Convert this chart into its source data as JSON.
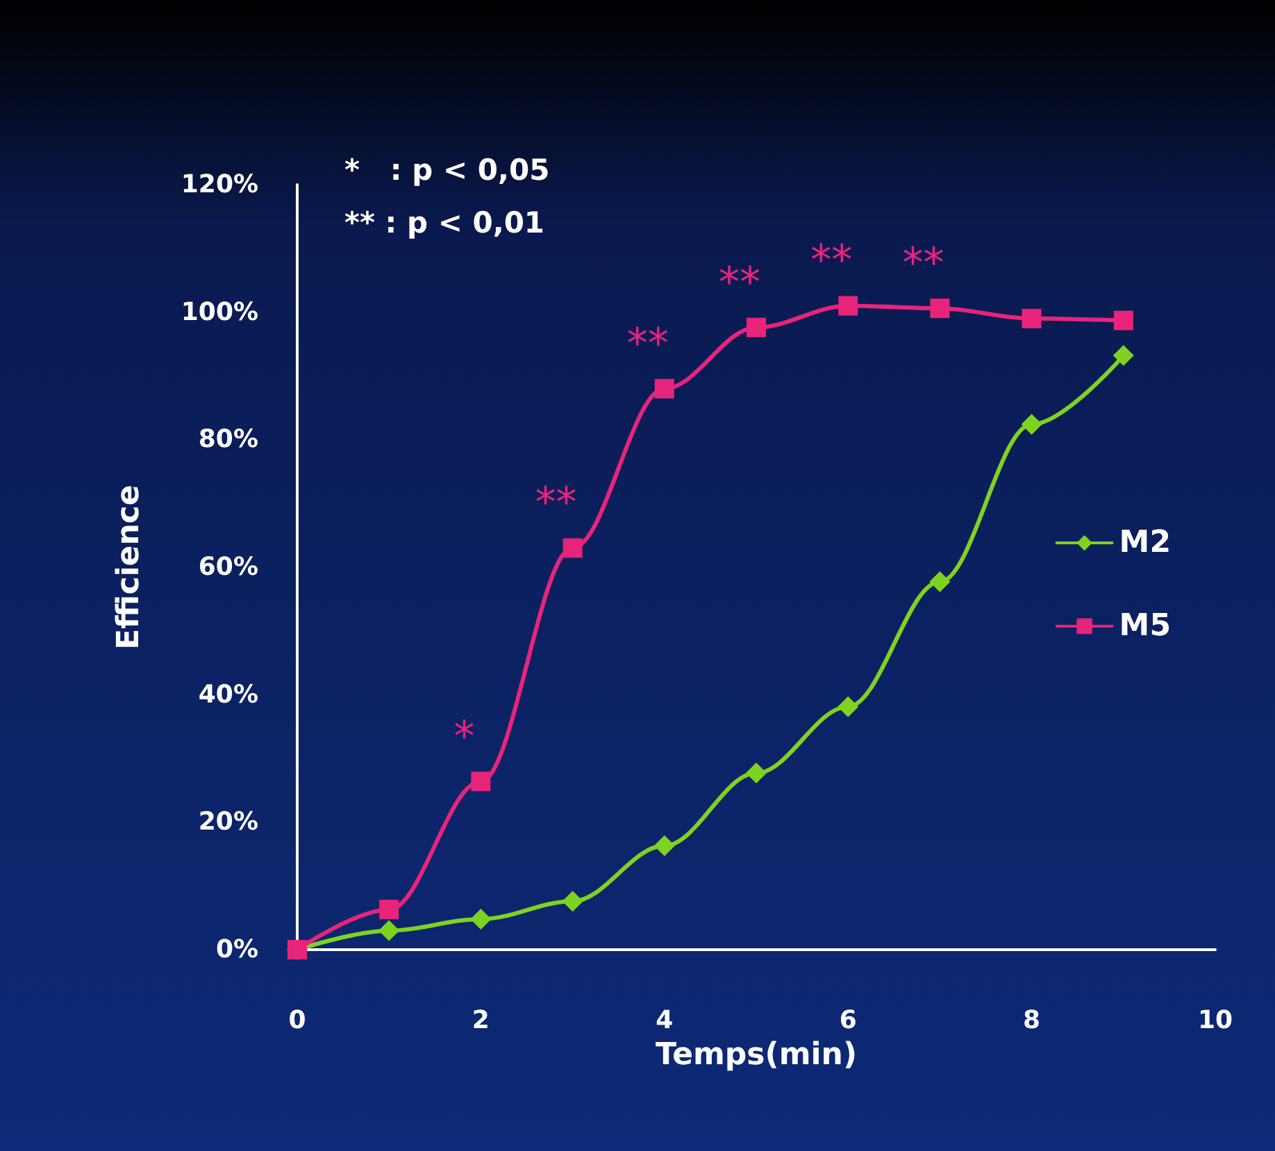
{
  "chart_data": {
    "type": "line",
    "xlabel": "Temps(min)",
    "ylabel": "Efficience",
    "x": [
      0,
      1,
      2,
      3,
      4,
      5,
      6,
      7,
      8,
      9
    ],
    "series": [
      {
        "name": "M2",
        "color": "#7ed321",
        "marker": "diamond",
        "values": [
          0,
          3,
          4.8,
          7.6,
          16.3,
          27.7,
          38.1,
          57.7,
          82.4,
          93.2
        ]
      },
      {
        "name": "M5",
        "color": "#e8247a",
        "marker": "square",
        "values": [
          0,
          6.3,
          26.4,
          63,
          88,
          97.6,
          101,
          100.6,
          99,
          98.7
        ]
      }
    ],
    "xlim": [
      0,
      10
    ],
    "xticks": [
      0,
      2,
      4,
      6,
      8,
      10
    ],
    "ylim": [
      0,
      120
    ],
    "yticks": [
      {
        "value": 0,
        "label": "0%"
      },
      {
        "value": 20,
        "label": "20%"
      },
      {
        "value": 40,
        "label": "40%"
      },
      {
        "value": 60,
        "label": "60%"
      },
      {
        "value": 80,
        "label": "80%"
      },
      {
        "value": 100,
        "label": "100%"
      },
      {
        "value": 120,
        "label": "120%"
      }
    ],
    "grid": false,
    "legend": "right",
    "line_style": "solid",
    "annotations": [
      "*   : p < 0,05",
      "** : p < 0,01",
      {
        "text": "*",
        "x": 2,
        "y": 26.4
      },
      {
        "text": "**",
        "x": 3,
        "y": 63
      },
      {
        "text": "**",
        "x": 4,
        "y": 88
      },
      {
        "text": "**",
        "x": 5,
        "y": 97.6
      },
      {
        "text": "**",
        "x": 6,
        "y": 101
      },
      {
        "text": "**",
        "x": 7,
        "y": 100.6
      }
    ]
  }
}
